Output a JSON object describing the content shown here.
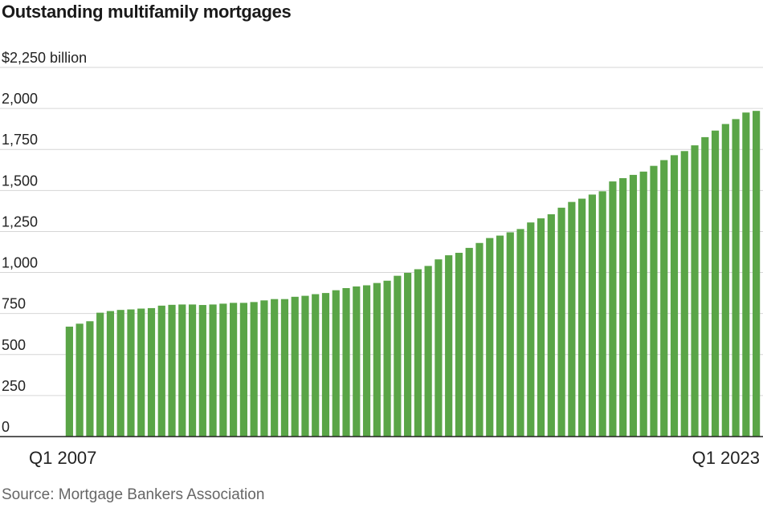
{
  "title": "Outstanding multifamily mortgages",
  "source": "Source: Mortgage Bankers Association",
  "chart_data": {
    "type": "bar",
    "title": "Outstanding multifamily mortgages",
    "xlabel": "",
    "ylabel": "",
    "ylim": [
      0,
      2250
    ],
    "y_ticks": [
      0,
      250,
      500,
      750,
      1000,
      1250,
      1500,
      1750,
      2000,
      2250
    ],
    "y_tick_labels": [
      "0",
      "250",
      "500",
      "750",
      "1,000",
      "1,250",
      "1,500",
      "1,750",
      "2,000",
      "$2,250 billion"
    ],
    "x_tick_labels": [
      "Q1 2007",
      "Q1 2023"
    ],
    "grid": true,
    "bar_color": "#5aa547",
    "values": [
      670,
      688,
      703,
      755,
      765,
      772,
      775,
      780,
      783,
      798,
      803,
      805,
      805,
      802,
      805,
      810,
      815,
      815,
      820,
      830,
      838,
      838,
      852,
      858,
      868,
      875,
      892,
      905,
      915,
      922,
      936,
      950,
      980,
      998,
      1020,
      1040,
      1080,
      1105,
      1120,
      1150,
      1180,
      1210,
      1225,
      1245,
      1265,
      1305,
      1330,
      1355,
      1395,
      1430,
      1450,
      1475,
      1495,
      1555,
      1575,
      1595,
      1615,
      1650,
      1685,
      1715,
      1740,
      1775,
      1825,
      1865,
      1905,
      1935,
      1975,
      1985
    ]
  }
}
